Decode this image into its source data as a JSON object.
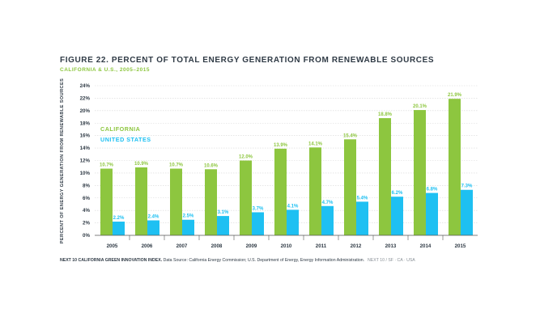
{
  "title": "FIGURE 22. PERCENT OF TOTAL ENERGY GENERATION FROM RENEWABLE SOURCES",
  "subtitle": "CALIFORNIA & U.S., 2005–2015",
  "footer": {
    "index_label": "NEXT 10 CALIFORNIA GREEN INNOVATION INDEX.",
    "source": "Data Source: California Energy Commission; U.S. Department of Energy, Energy Information Administration.",
    "brand": "NEXT 10  /  SF · CA · USA"
  },
  "colors": {
    "california": "#8dc63f",
    "united_states": "#1ec0f2",
    "text": "#2f3a45",
    "grid": "#d7d7d7"
  },
  "chart_data": {
    "type": "bar",
    "categories": [
      "2005",
      "2006",
      "2007",
      "2008",
      "2009",
      "2010",
      "2011",
      "2012",
      "2013",
      "2014",
      "2015"
    ],
    "series": [
      {
        "name": "CALIFORNIA",
        "values": [
          10.7,
          10.9,
          10.7,
          10.6,
          12.0,
          13.9,
          14.1,
          15.4,
          18.8,
          20.1,
          21.9
        ]
      },
      {
        "name": "UNITED STATES",
        "values": [
          2.2,
          2.4,
          2.5,
          3.1,
          3.7,
          4.1,
          4.7,
          5.4,
          6.2,
          6.8,
          7.3
        ]
      }
    ],
    "data_labels": [
      [
        "10.7%",
        "10.9%",
        "10.7%",
        "10.6%",
        "12.0%",
        "13.9%",
        "14.1%",
        "15.4%",
        "18.8%",
        "20.1%",
        "21.9%"
      ],
      [
        "2.2%",
        "2.4%",
        "2.5%",
        "3.1%",
        "3.7%",
        "4.1%",
        "4.7%",
        "5.4%",
        "6.2%",
        "6.8%",
        "7.3%"
      ]
    ],
    "ylabel": "PERCENT OF ENERGY GENERATION FROM RENEWABLE SOURCES",
    "ylim": [
      0,
      24
    ],
    "yticks": [
      "0%",
      "2%",
      "4%",
      "6%",
      "8%",
      "10%",
      "12%",
      "14%",
      "16%",
      "18%",
      "20%",
      "22%",
      "24%"
    ],
    "grid": true,
    "legend_position": "top-left"
  }
}
